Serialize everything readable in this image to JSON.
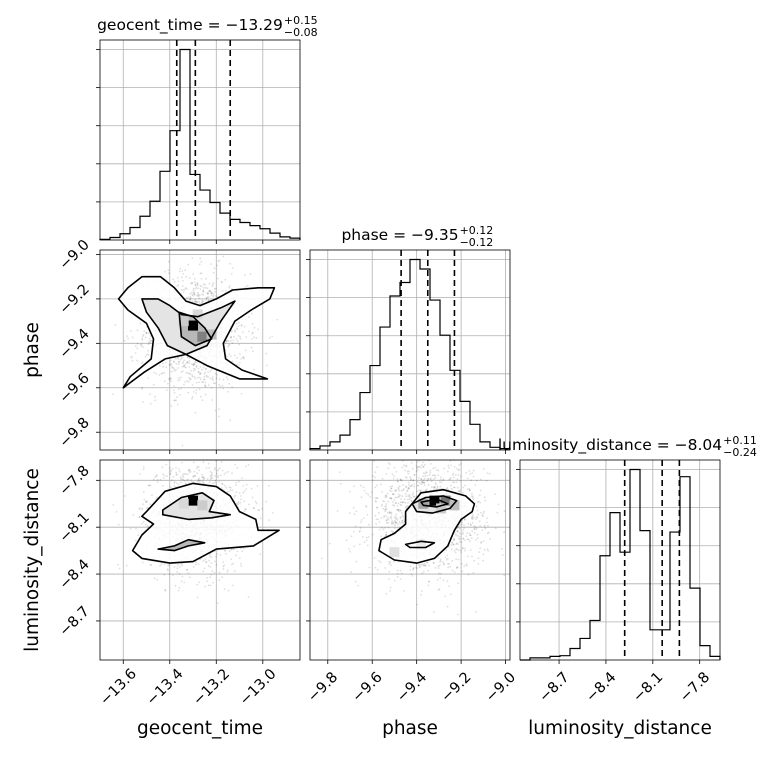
{
  "chart_data": {
    "type": "corner",
    "parameters": [
      {
        "key": "geocent_time",
        "label": "geocent_time",
        "median": -13.29,
        "plus": 0.15,
        "minus": 0.08,
        "range": [
          -13.7,
          -12.84
        ],
        "ticks": [
          -13.6,
          -13.4,
          -13.2,
          -13.0
        ],
        "tick_labels": [
          "−13.6",
          "−13.4",
          "−13.2",
          "−13.0"
        ],
        "title_main": "geocent_time = −13.29",
        "title_sup": "+0.15",
        "title_sub": "−0.08",
        "quantiles": [
          -13.37,
          -13.29,
          -13.14
        ]
      },
      {
        "key": "phase",
        "label": "phase",
        "median": -9.35,
        "plus": 0.12,
        "minus": 0.12,
        "range": [
          -9.88,
          -8.98
        ],
        "ticks": [
          -9.8,
          -9.6,
          -9.4,
          -9.2,
          -9.0
        ],
        "tick_labels": [
          "−9.8",
          "−9.6",
          "−9.4",
          "−9.2",
          "−9.0"
        ],
        "title_main": "phase = −9.35",
        "title_sup": "+0.12",
        "title_sub": "−0.12",
        "quantiles": [
          -9.47,
          -9.35,
          -9.23
        ]
      },
      {
        "key": "luminosity_distance",
        "label": "luminosity_distance",
        "median": -8.04,
        "plus": 0.11,
        "minus": 0.24,
        "range": [
          -8.95,
          -7.67
        ],
        "ticks": [
          -8.7,
          -8.4,
          -8.1,
          -7.8
        ],
        "tick_labels": [
          "−8.7",
          "−8.4",
          "−8.1",
          "−7.8"
        ],
        "title_main": "luminosity_distance = −8.04",
        "title_sup": "+0.11",
        "title_sub": "−0.24",
        "quantiles": [
          -8.28,
          -8.04,
          -7.93
        ]
      }
    ],
    "histograms": [
      {
        "param": "geocent_time",
        "edges": [
          -13.7,
          -13.657,
          -13.614,
          -13.571,
          -13.528,
          -13.485,
          -13.442,
          -13.399,
          -13.356,
          -13.313,
          -13.27,
          -13.227,
          -13.184,
          -13.141,
          -13.098,
          -13.055,
          -13.012,
          -12.969,
          -12.926,
          -12.883,
          -12.84
        ],
        "counts": [
          1,
          4,
          10,
          20,
          38,
          62,
          110,
          175,
          305,
          105,
          80,
          60,
          43,
          33,
          28,
          23,
          18,
          11,
          5,
          3
        ]
      },
      {
        "param": "phase",
        "edges": [
          -9.88,
          -9.835,
          -9.79,
          -9.745,
          -9.7,
          -9.655,
          -9.61,
          -9.565,
          -9.52,
          -9.475,
          -9.43,
          -9.385,
          -9.34,
          -9.295,
          -9.25,
          -9.205,
          -9.16,
          -9.115,
          -9.07,
          -9.025,
          -8.98
        ],
        "counts": [
          2,
          6,
          12,
          22,
          45,
          85,
          125,
          182,
          228,
          248,
          282,
          268,
          222,
          170,
          118,
          72,
          38,
          12,
          4,
          2
        ]
      },
      {
        "param": "luminosity_distance",
        "edges": [
          -8.95,
          -8.886,
          -8.822,
          -8.758,
          -8.694,
          -8.63,
          -8.566,
          -8.502,
          -8.438,
          -8.374,
          -8.31,
          -8.246,
          -8.182,
          -8.118,
          -8.054,
          -7.99,
          -7.926,
          -7.862,
          -7.798,
          -7.734,
          -7.67
        ],
        "counts": [
          0,
          3,
          3,
          5,
          6,
          16,
          30,
          55,
          145,
          205,
          150,
          265,
          180,
          42,
          42,
          178,
          255,
          100,
          20,
          5
        ]
      }
    ],
    "contours": [
      {
        "x": "geocent_time",
        "y": "phase",
        "levels": [
          [
            [
              -13.58,
              -9.15
            ],
            [
              -13.52,
              -9.1
            ],
            [
              -13.44,
              -9.1
            ],
            [
              -13.38,
              -9.15
            ],
            [
              -13.33,
              -9.21
            ],
            [
              -13.27,
              -9.23
            ],
            [
              -13.2,
              -9.2
            ],
            [
              -13.13,
              -9.16
            ],
            [
              -13.02,
              -9.15
            ],
            [
              -12.95,
              -9.15
            ],
            [
              -12.97,
              -9.2
            ],
            [
              -13.05,
              -9.25
            ],
            [
              -13.12,
              -9.3
            ],
            [
              -13.17,
              -9.4
            ],
            [
              -13.16,
              -9.47
            ],
            [
              -13.09,
              -9.52
            ],
            [
              -12.98,
              -9.56
            ],
            [
              -13.1,
              -9.56
            ],
            [
              -13.24,
              -9.5
            ],
            [
              -13.33,
              -9.45
            ],
            [
              -13.42,
              -9.47
            ],
            [
              -13.51,
              -9.53
            ],
            [
              -13.6,
              -9.6
            ],
            [
              -13.57,
              -9.55
            ],
            [
              -13.48,
              -9.47
            ],
            [
              -13.47,
              -9.38
            ],
            [
              -13.5,
              -9.31
            ],
            [
              -13.58,
              -9.25
            ],
            [
              -13.62,
              -9.2
            ]
          ],
          [
            [
              -13.45,
              -9.2
            ],
            [
              -13.4,
              -9.23
            ],
            [
              -13.35,
              -9.27
            ],
            [
              -13.28,
              -9.28
            ],
            [
              -13.18,
              -9.24
            ],
            [
              -13.12,
              -9.21
            ],
            [
              -13.18,
              -9.3
            ],
            [
              -13.24,
              -9.41
            ],
            [
              -13.33,
              -9.45
            ],
            [
              -13.41,
              -9.41
            ],
            [
              -13.45,
              -9.33
            ],
            [
              -13.5,
              -9.26
            ],
            [
              -13.52,
              -9.2
            ]
          ],
          [
            [
              -13.36,
              -9.26
            ],
            [
              -13.3,
              -9.28
            ],
            [
              -13.25,
              -9.33
            ],
            [
              -13.22,
              -9.38
            ],
            [
              -13.29,
              -9.41
            ],
            [
              -13.35,
              -9.37
            ]
          ]
        ]
      },
      {
        "x": "geocent_time",
        "y": "luminosity_distance",
        "levels": [
          [
            [
              -13.5,
              -8.0
            ],
            [
              -13.42,
              -7.87
            ],
            [
              -13.3,
              -7.82
            ],
            [
              -13.2,
              -7.84
            ],
            [
              -13.14,
              -7.9
            ],
            [
              -13.1,
              -8.0
            ],
            [
              -13.03,
              -8.05
            ],
            [
              -13.02,
              -8.12
            ],
            [
              -12.93,
              -8.12
            ],
            [
              -13.04,
              -8.22
            ],
            [
              -13.2,
              -8.24
            ],
            [
              -13.3,
              -8.32
            ],
            [
              -13.4,
              -8.33
            ],
            [
              -13.52,
              -8.3
            ],
            [
              -13.56,
              -8.25
            ],
            [
              -13.52,
              -8.15
            ],
            [
              -13.47,
              -8.08
            ],
            [
              -13.52,
              -8.03
            ]
          ],
          [
            [
              -13.43,
              -7.99
            ],
            [
              -13.35,
              -7.91
            ],
            [
              -13.26,
              -7.88
            ],
            [
              -13.21,
              -7.93
            ],
            [
              -13.23,
              -8.0
            ],
            [
              -13.14,
              -8.02
            ],
            [
              -13.22,
              -8.04
            ],
            [
              -13.32,
              -8.05
            ],
            [
              -13.43,
              -8.02
            ]
          ],
          [
            [
              -13.45,
              -8.24
            ],
            [
              -13.38,
              -8.22
            ],
            [
              -13.32,
              -8.18
            ],
            [
              -13.25,
              -8.2
            ],
            [
              -13.32,
              -8.22
            ],
            [
              -13.38,
              -8.25
            ]
          ]
        ]
      },
      {
        "x": "phase",
        "y": "luminosity_distance",
        "levels": [
          [
            [
              -9.45,
              -8.0
            ],
            [
              -9.38,
              -7.88
            ],
            [
              -9.28,
              -7.86
            ],
            [
              -9.18,
              -7.9
            ],
            [
              -9.14,
              -7.95
            ],
            [
              -9.15,
              -8.0
            ],
            [
              -9.2,
              -8.05
            ],
            [
              -9.23,
              -8.12
            ],
            [
              -9.26,
              -8.22
            ],
            [
              -9.32,
              -8.3
            ],
            [
              -9.4,
              -8.33
            ],
            [
              -9.5,
              -8.31
            ],
            [
              -9.57,
              -8.25
            ],
            [
              -9.56,
              -8.18
            ],
            [
              -9.5,
              -8.14
            ],
            [
              -9.45,
              -8.08
            ]
          ],
          [
            [
              -9.42,
              -7.95
            ],
            [
              -9.36,
              -7.91
            ],
            [
              -9.28,
              -7.9
            ],
            [
              -9.22,
              -7.93
            ],
            [
              -9.25,
              -7.98
            ],
            [
              -9.33,
              -8.01
            ],
            [
              -9.4,
              -8.0
            ]
          ],
          [
            [
              -9.38,
              -7.94
            ],
            [
              -9.31,
              -7.92
            ],
            [
              -9.26,
              -7.95
            ],
            [
              -9.31,
              -7.97
            ],
            [
              -9.37,
              -7.96
            ]
          ],
          [
            [
              -9.45,
              -8.21
            ],
            [
              -9.38,
              -8.19
            ],
            [
              -9.32,
              -8.2
            ],
            [
              -9.36,
              -8.23
            ],
            [
              -9.43,
              -8.23
            ]
          ]
        ]
      }
    ],
    "hist2d_peaks": [
      {
        "x": "geocent_time",
        "y": "phase",
        "cells": [
          [
            -13.3,
            -9.32,
            1.0
          ],
          [
            -13.26,
            -9.37,
            0.5
          ],
          [
            -13.22,
            -9.36,
            0.25
          ],
          [
            -13.34,
            -9.3,
            0.2
          ],
          [
            -13.28,
            -9.27,
            0.15
          ]
        ]
      },
      {
        "x": "geocent_time",
        "y": "luminosity_distance",
        "cells": [
          [
            -13.3,
            -7.93,
            1.0
          ],
          [
            -13.26,
            -7.96,
            0.2
          ],
          [
            -13.34,
            -7.95,
            0.15
          ]
        ]
      },
      {
        "x": "phase",
        "y": "luminosity_distance",
        "cells": [
          [
            -9.32,
            -7.93,
            1.0
          ],
          [
            -9.27,
            -7.93,
            0.55
          ],
          [
            -9.37,
            -7.95,
            0.35
          ],
          [
            -9.23,
            -7.96,
            0.25
          ],
          [
            -9.29,
            -7.98,
            0.2
          ],
          [
            -9.5,
            -8.26,
            0.12
          ],
          [
            -9.38,
            -8.21,
            0.08
          ]
        ]
      }
    ],
    "grid": true
  }
}
